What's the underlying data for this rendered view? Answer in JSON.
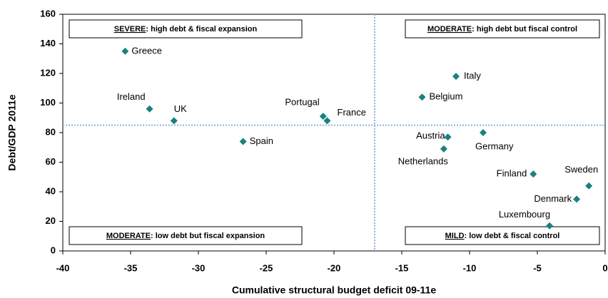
{
  "chart_data": {
    "type": "scatter",
    "x_label": "Cumulative structural budget deficit 09-11e",
    "y_label": "Debt/GDP 2011e",
    "points": [
      {
        "label": "Greece",
        "x": -35.4,
        "y": 135
      },
      {
        "label": "Ireland",
        "x": -33.6,
        "y": 96
      },
      {
        "label": "UK",
        "x": -31.8,
        "y": 88
      },
      {
        "label": "Spain",
        "x": -26.7,
        "y": 74
      },
      {
        "label": "Portugal",
        "x": -20.8,
        "y": 91
      },
      {
        "label": "France",
        "x": -20.5,
        "y": 88
      },
      {
        "label": "Italy",
        "x": -11.0,
        "y": 118
      },
      {
        "label": "Belgium",
        "x": -13.5,
        "y": 104
      },
      {
        "label": "Austria",
        "x": -11.6,
        "y": 77
      },
      {
        "label": "Netherlands",
        "x": -11.9,
        "y": 69
      },
      {
        "label": "Germany",
        "x": -9.0,
        "y": 80
      },
      {
        "label": "Finland",
        "x": -5.3,
        "y": 52
      },
      {
        "label": "Sweden",
        "x": -1.2,
        "y": 44
      },
      {
        "label": "Denmark",
        "x": -2.1,
        "y": 35
      },
      {
        "label": "Luxembourg",
        "x": -4.1,
        "y": 17
      }
    ],
    "color": "#1a8080",
    "reference_lines": {
      "x": -17,
      "y": 85,
      "color": "#8fb4e3"
    },
    "xlim": [
      -40,
      0
    ],
    "xticks": [
      -40,
      -35,
      -30,
      -25,
      -20,
      -15,
      -10,
      -5,
      0
    ],
    "ylim": [
      0,
      160
    ],
    "yticks": [
      0,
      20,
      40,
      60,
      80,
      100,
      120,
      140,
      160
    ],
    "annotations": [
      {
        "label": "SEVERE",
        "text": ": high debt & fiscal expansion"
      },
      {
        "label": "MODERATE",
        "text": ": high debt but fiscal control"
      },
      {
        "label": "MODERATE",
        "text": ": low debt but fiscal expansion"
      },
      {
        "label": "MILD",
        "text": ": low debt & fiscal control"
      }
    ]
  }
}
